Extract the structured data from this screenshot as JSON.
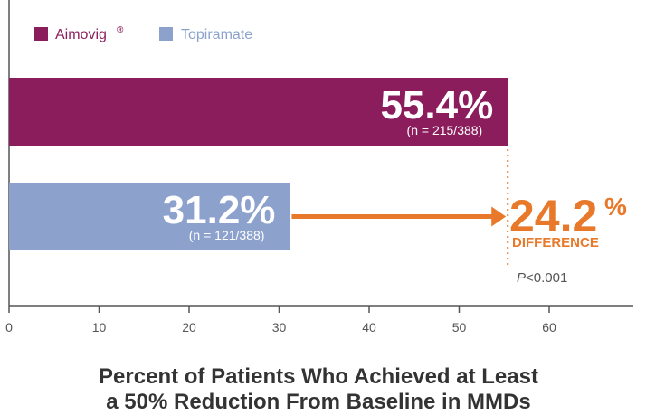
{
  "colors": {
    "aimovig": "#8C1D5C",
    "topiramate": "#8CA2CC",
    "difference": "#E8792A",
    "axis": "#555555",
    "title": "#333333"
  },
  "legend": {
    "aimovig_label": "Aimovig",
    "aimovig_reg": "®",
    "topiramate_label": "Topiramate"
  },
  "chart_data": {
    "type": "bar",
    "orientation": "horizontal",
    "title_lines": [
      "Percent of Patients Who Achieved at Least",
      "a 50% Reduction From Baseline in MMDs"
    ],
    "xlabel": "",
    "ylabel": "",
    "xlim": [
      0,
      69
    ],
    "ticks": [
      0,
      10,
      20,
      30,
      40,
      50,
      60
    ],
    "tick_labels": [
      "0",
      "10",
      "20",
      "30",
      "40",
      "50",
      "60"
    ],
    "grid": false,
    "legend_position": "top-left",
    "series": [
      {
        "name": "Aimovig®",
        "value": 55.4,
        "label": "55.4%",
        "n_label": "(n = 215/388)"
      },
      {
        "name": "Topiramate",
        "value": 31.2,
        "label": "31.2%",
        "n_label": "(n = 121/388)"
      }
    ],
    "annotation": {
      "difference_number": "24.2",
      "difference_percent": "%",
      "difference_label": "DIFFERENCE",
      "p_value_italic": "P",
      "p_value_rest": "<0.001"
    }
  }
}
